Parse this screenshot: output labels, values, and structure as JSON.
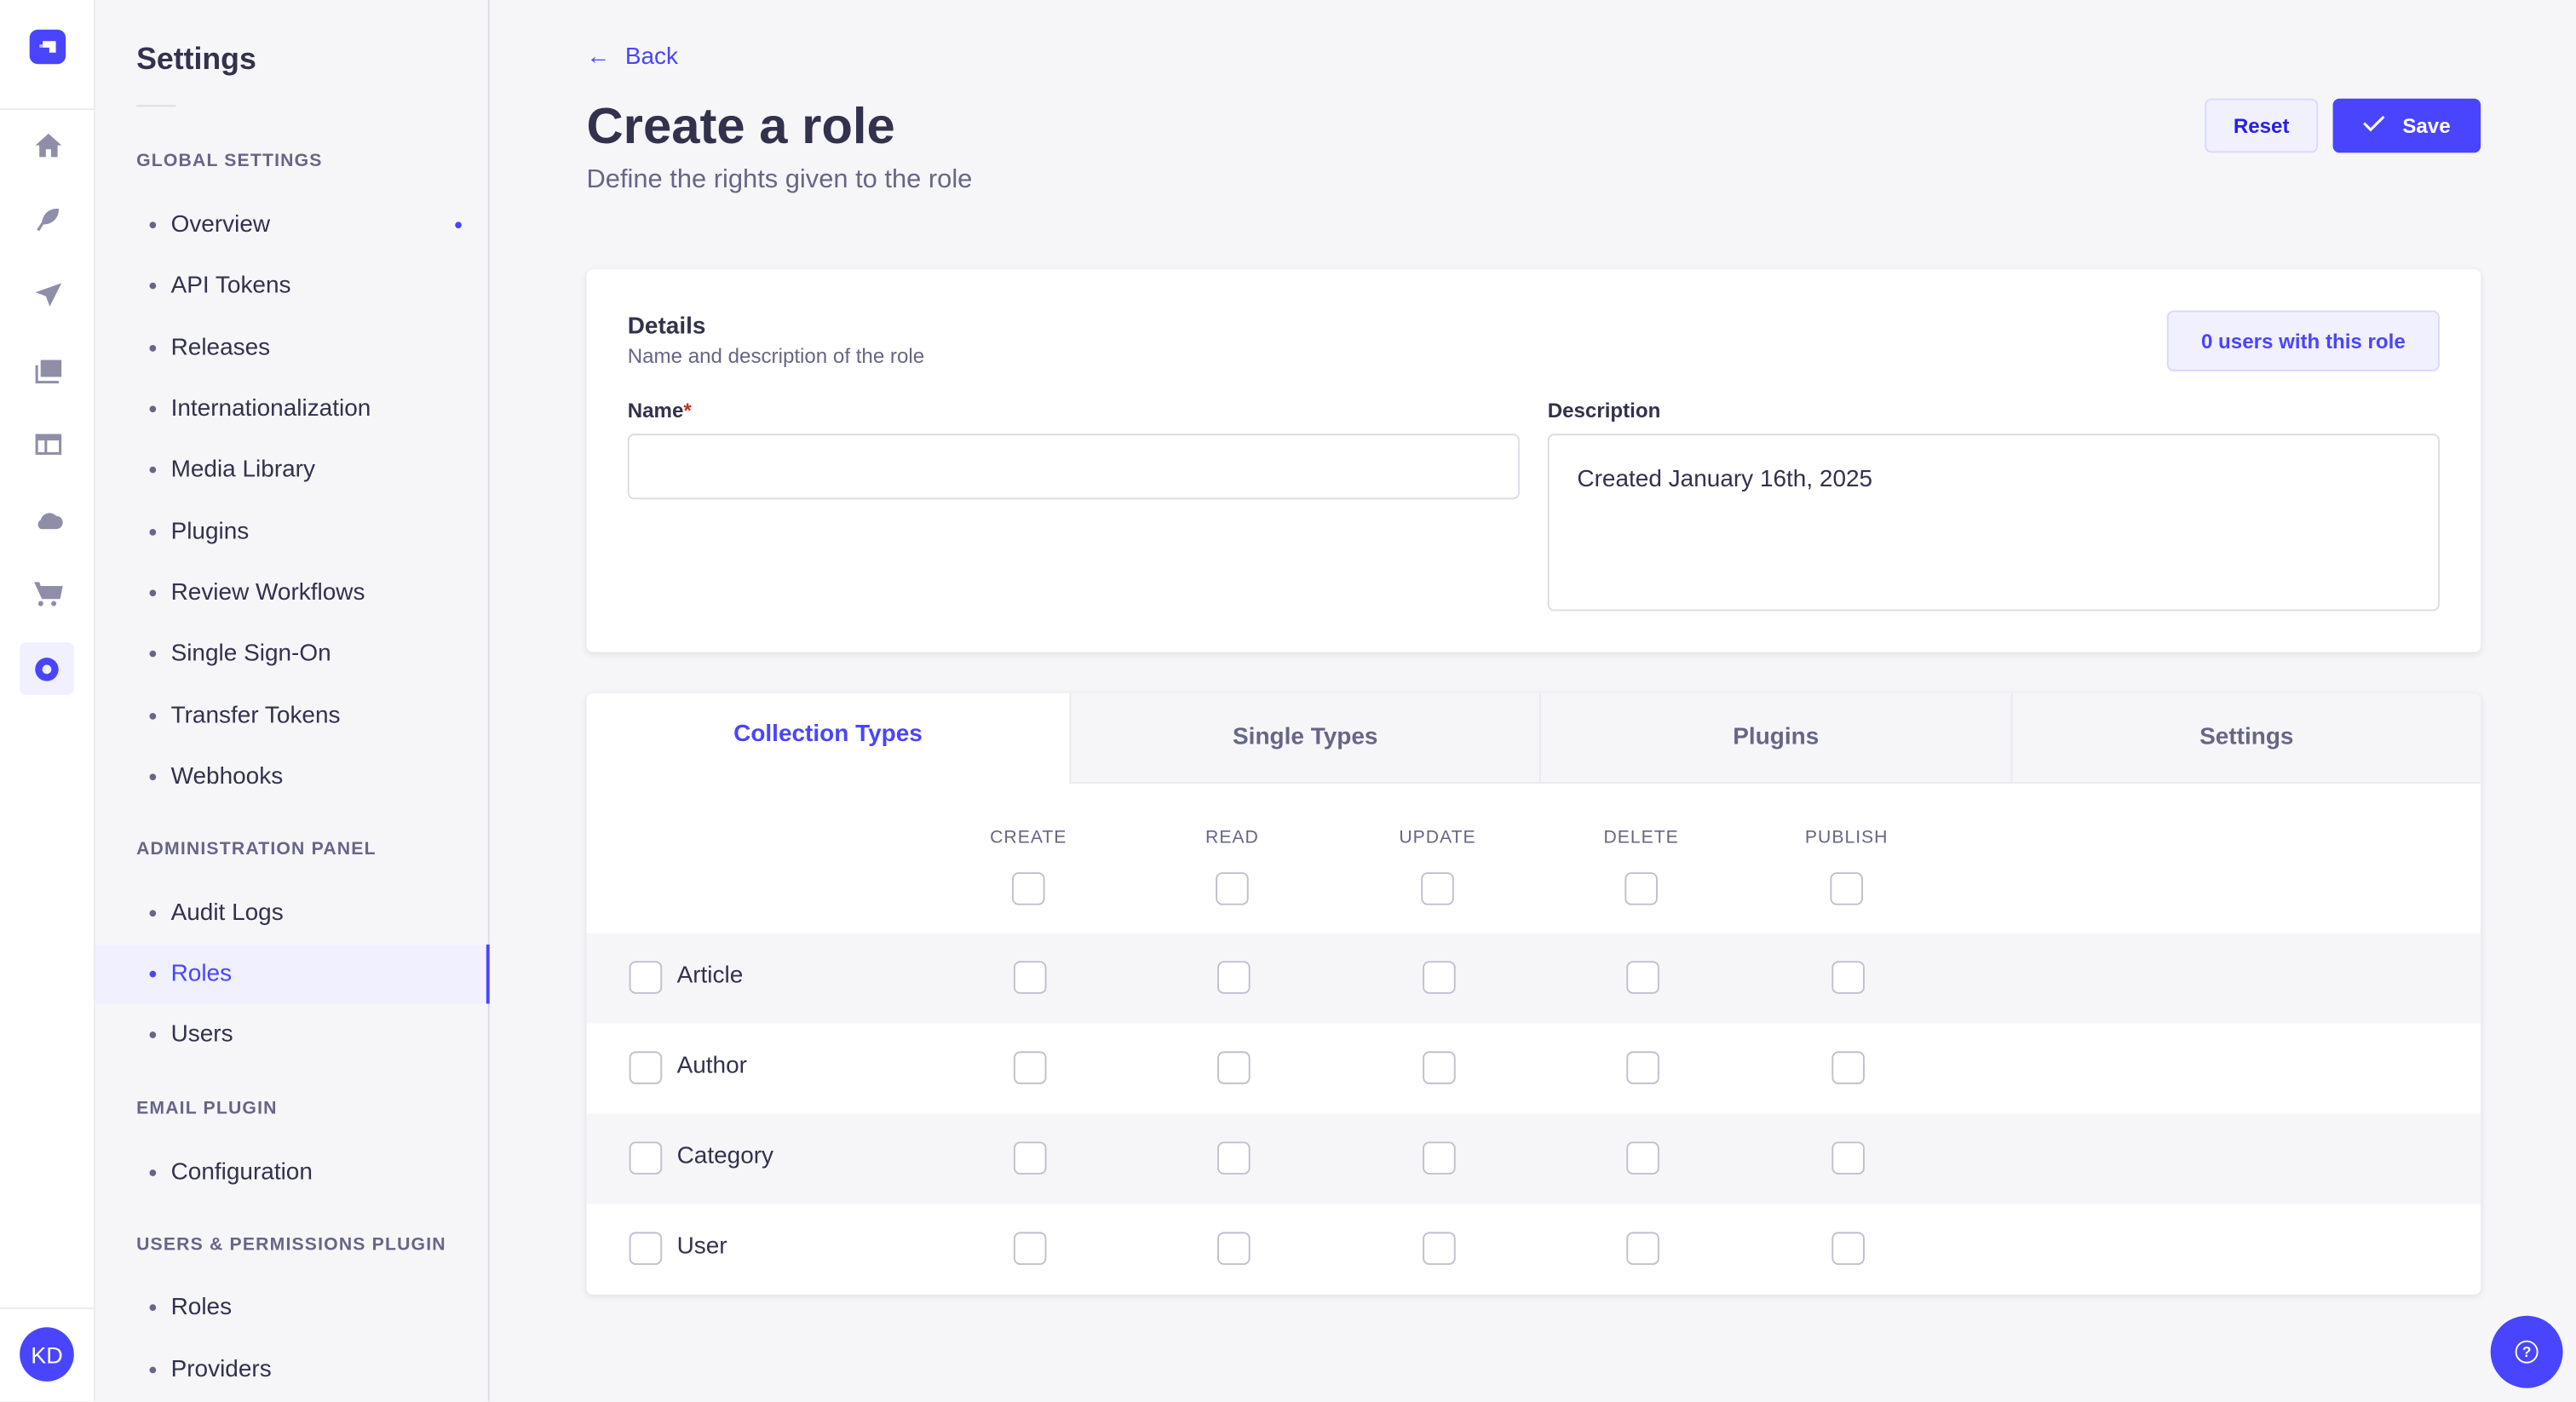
{
  "rail": {
    "icons": [
      "logo-icon",
      "home-icon",
      "feather-icon",
      "paper-plane-icon",
      "images-icon",
      "layout-icon",
      "cloud-icon",
      "cart-icon",
      "gear-icon"
    ],
    "avatar": "KD"
  },
  "subnav": {
    "title": "Settings",
    "sections": [
      {
        "title": "GLOBAL SETTINGS",
        "items": [
          "Overview",
          "API Tokens",
          "Releases",
          "Internationalization",
          "Media Library",
          "Plugins",
          "Review Workflows",
          "Single Sign-On",
          "Transfer Tokens",
          "Webhooks"
        ]
      },
      {
        "title": "ADMINISTRATION PANEL",
        "items": [
          "Audit Logs",
          "Roles",
          "Users"
        ]
      },
      {
        "title": "EMAIL PLUGIN",
        "items": [
          "Configuration"
        ]
      },
      {
        "title": "USERS & PERMISSIONS PLUGIN",
        "items": [
          "Roles",
          "Providers"
        ]
      }
    ],
    "active": "Roles"
  },
  "header": {
    "back": "Back",
    "title": "Create a role",
    "subtitle": "Define the rights given to the role",
    "reset": "Reset",
    "save": "Save"
  },
  "details": {
    "title": "Details",
    "subtitle": "Name and description of the role",
    "users_badge": "0 users with this role",
    "name_label": "Name",
    "required_mark": "*",
    "name_value": "",
    "description_label": "Description",
    "description_value": "Created January 16th, 2025"
  },
  "permissions": {
    "tabs": [
      "Collection Types",
      "Single Types",
      "Plugins",
      "Settings"
    ],
    "active_tab": "Collection Types",
    "columns": [
      "CREATE",
      "READ",
      "UPDATE",
      "DELETE",
      "PUBLISH"
    ],
    "rows": [
      "Article",
      "Author",
      "Category",
      "User"
    ]
  },
  "colors": {
    "accent": "#4945ff",
    "text": "#32324d",
    "muted": "#666687",
    "bg": "#f6f6f9"
  }
}
